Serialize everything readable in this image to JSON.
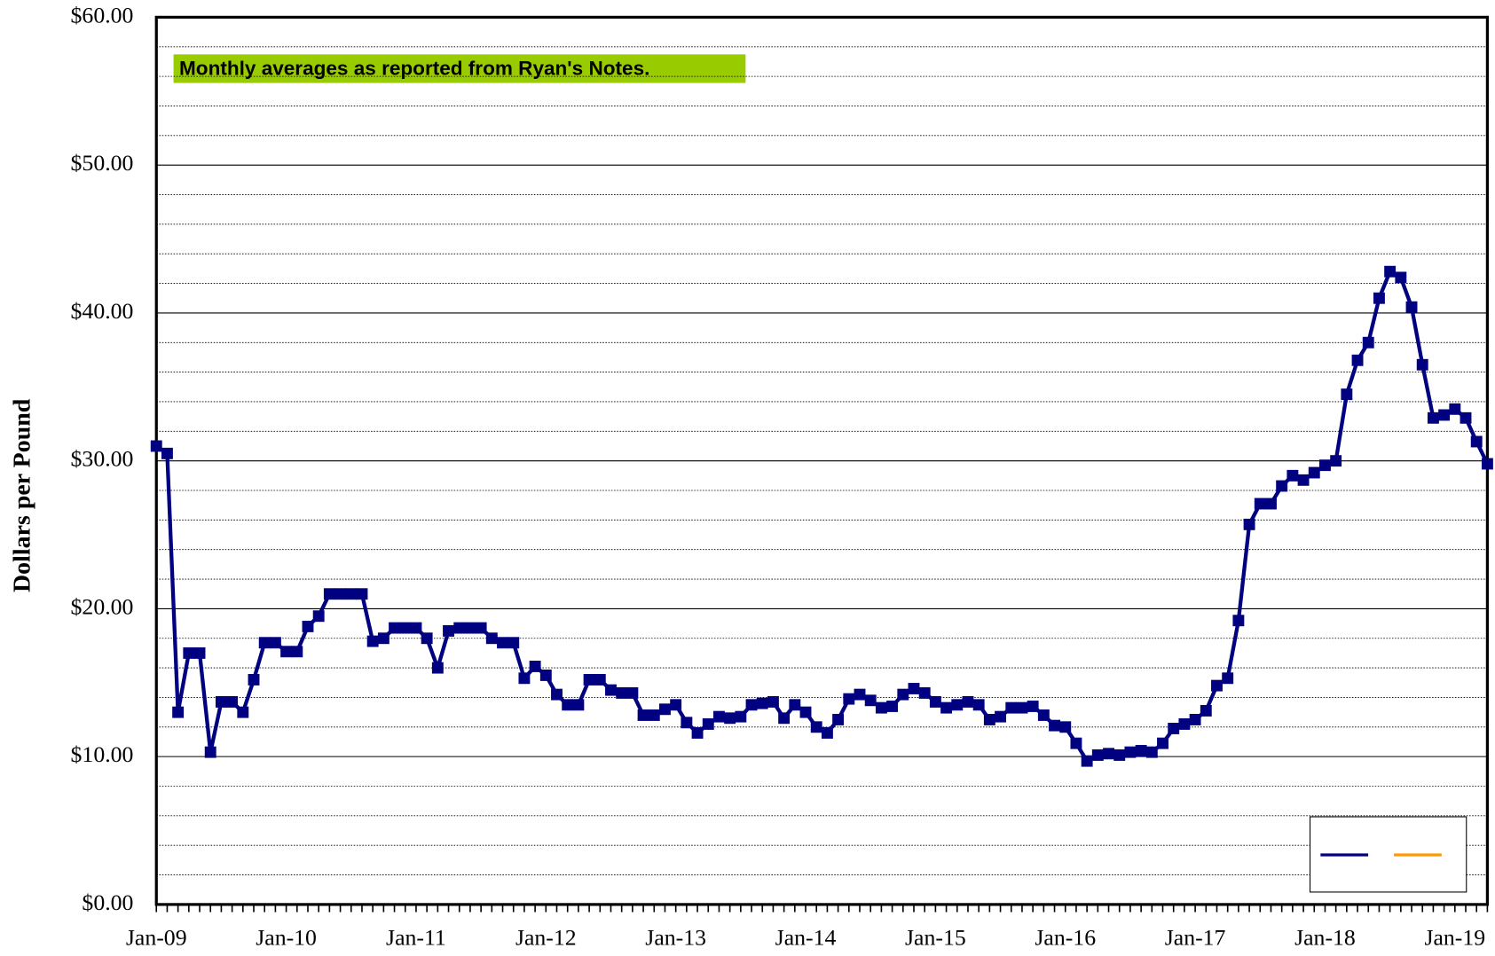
{
  "chart_data": {
    "type": "line",
    "ylabel": "Dollars per Pound",
    "annotation": "Monthly averages as reported from Ryan's Notes.",
    "categories": [
      "Jan-09",
      null,
      null,
      null,
      null,
      null,
      null,
      null,
      null,
      null,
      null,
      null,
      "Jan-10",
      null,
      null,
      null,
      null,
      null,
      null,
      null,
      null,
      null,
      null,
      null,
      "Jan-11",
      null,
      null,
      null,
      null,
      null,
      null,
      null,
      null,
      null,
      null,
      null,
      "Jan-12",
      null,
      null,
      null,
      null,
      null,
      null,
      null,
      null,
      null,
      null,
      null,
      "Jan-13",
      null,
      null,
      null,
      null,
      null,
      null,
      null,
      null,
      null,
      null,
      null,
      "Jan-14",
      null,
      null,
      null,
      null,
      null,
      null,
      null,
      null,
      null,
      null,
      null,
      "Jan-15",
      null,
      null,
      null,
      null,
      null,
      null,
      null,
      null,
      null,
      null,
      null,
      "Jan-16",
      null,
      null,
      null,
      null,
      null,
      null,
      null,
      null,
      null,
      null,
      null,
      "Jan-17",
      null,
      null,
      null,
      null,
      null,
      null,
      null,
      null,
      null,
      null,
      null,
      "Jan-18",
      null,
      null,
      null,
      null,
      null,
      null,
      null,
      null,
      null,
      null,
      null,
      "Jan-19",
      null,
      null,
      null
    ],
    "values": [
      31.0,
      30.5,
      13.0,
      17.0,
      17.0,
      10.3,
      13.7,
      13.7,
      13.0,
      15.2,
      17.7,
      17.7,
      17.1,
      17.1,
      18.8,
      19.5,
      21.0,
      21.0,
      21.0,
      21.0,
      17.8,
      18.0,
      18.7,
      18.7,
      18.7,
      18.0,
      16.0,
      18.5,
      18.7,
      18.7,
      18.7,
      18.0,
      17.7,
      17.7,
      15.3,
      16.1,
      15.5,
      14.2,
      13.5,
      13.5,
      15.2,
      15.2,
      14.5,
      14.3,
      14.3,
      12.8,
      12.8,
      13.2,
      13.5,
      12.3,
      11.6,
      12.2,
      12.7,
      12.6,
      12.7,
      13.5,
      13.6,
      13.7,
      12.6,
      13.5,
      13.0,
      12.0,
      11.6,
      12.5,
      13.9,
      14.2,
      13.8,
      13.3,
      13.4,
      14.2,
      14.6,
      14.3,
      13.7,
      13.3,
      13.5,
      13.7,
      13.5,
      12.5,
      12.7,
      13.3,
      13.3,
      13.4,
      12.8,
      12.1,
      12.0,
      10.9,
      9.7,
      10.1,
      10.2,
      10.1,
      10.3,
      10.4,
      10.3,
      10.9,
      11.9,
      12.2,
      12.5,
      13.1,
      14.8,
      15.3,
      19.2,
      25.7,
      27.1,
      27.1,
      28.3,
      29.0,
      28.7,
      29.2,
      29.7,
      30.0,
      34.5,
      36.8,
      38.0,
      41.0,
      42.8,
      42.4,
      40.4,
      36.5,
      32.9,
      33.1,
      33.5,
      32.9,
      31.3,
      29.8
    ],
    "color": "#000080",
    "ylim": [
      0,
      60
    ],
    "yticks": [
      {
        "value": 0,
        "label": "$0.00"
      },
      {
        "value": 10,
        "label": "$10.00"
      },
      {
        "value": 20,
        "label": "$20.00"
      },
      {
        "value": 30,
        "label": "$30.00"
      },
      {
        "value": 40,
        "label": "$40.00"
      },
      {
        "value": 50,
        "label": "$50.00"
      },
      {
        "value": 60,
        "label": "$60.00"
      }
    ],
    "minor_yticks": [
      2,
      4,
      6,
      8,
      12,
      14,
      16,
      18,
      22,
      24,
      26,
      28,
      32,
      34,
      36,
      38,
      42,
      44,
      46,
      48,
      52,
      54,
      56,
      58
    ],
    "grid": true
  }
}
